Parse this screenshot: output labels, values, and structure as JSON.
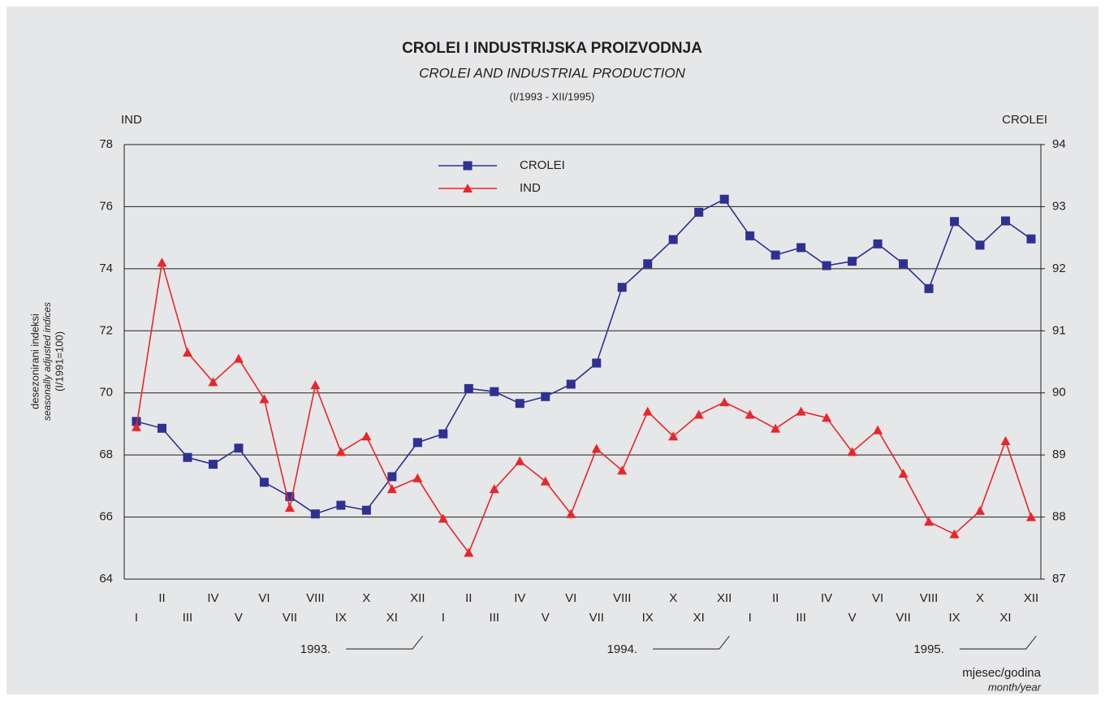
{
  "chart_data": {
    "type": "line",
    "title": "CROLEI I INDUSTRIJSKA PROIZVODNJA",
    "subtitle": "CROLEI AND INDUSTRIAL PRODUCTION",
    "period": "(I/1993 - XII/1995)",
    "ylabel": [
      "desezonirani indeksi",
      "seasonally adjusted indices",
      "(I/1991=100)"
    ],
    "y_axis_title": "IND",
    "y2_axis_title": "CROLEI",
    "xlabel": "mjesec/godina",
    "xlabel_en": "month/year",
    "categories": [
      "I",
      "II",
      "III",
      "IV",
      "V",
      "VI",
      "VII",
      "VIII",
      "IX",
      "X",
      "XI",
      "XII",
      "I",
      "II",
      "III",
      "IV",
      "V",
      "VI",
      "VII",
      "VIII",
      "IX",
      "X",
      "XI",
      "XII",
      "I",
      "II",
      "III",
      "IV",
      "V",
      "VI",
      "VII",
      "VIII",
      "IX",
      "X",
      "XI",
      "XII"
    ],
    "years": [
      "1993.",
      "1994.",
      "1995."
    ],
    "series": [
      {
        "name": "CROLEI",
        "color": "#2e3192",
        "marker": "square",
        "axis": "y2",
        "values": [
          89.54,
          89.43,
          88.96,
          88.85,
          89.11,
          88.56,
          88.33,
          88.05,
          88.19,
          88.11,
          88.65,
          89.2,
          89.34,
          90.07,
          90.02,
          89.83,
          89.94,
          90.14,
          90.48,
          91.7,
          92.08,
          92.47,
          92.91,
          93.12,
          92.53,
          92.22,
          92.34,
          92.05,
          92.12,
          92.4,
          92.08,
          91.68,
          92.76,
          92.38,
          92.77,
          92.48
        ]
      },
      {
        "name": "IND",
        "color": "#e8262b",
        "marker": "triangle",
        "axis": "y",
        "values": [
          68.9,
          74.2,
          71.3,
          70.35,
          71.1,
          69.8,
          66.3,
          70.25,
          68.1,
          68.6,
          66.9,
          67.25,
          65.95,
          64.85,
          66.9,
          67.8,
          67.15,
          66.1,
          68.2,
          67.5,
          69.4,
          68.6,
          69.3,
          69.7,
          69.3,
          68.85,
          69.4,
          69.2,
          68.1,
          68.8,
          67.4,
          65.85,
          65.45,
          66.2,
          68.45,
          66.0
        ]
      }
    ],
    "ylim": [
      64,
      78
    ],
    "yticks": [
      64,
      66,
      68,
      70,
      72,
      74,
      76,
      78
    ],
    "y2lim": [
      87,
      94
    ],
    "y2ticks": [
      87,
      88,
      89,
      90,
      91,
      92,
      93,
      94
    ],
    "grid": true,
    "legend": "upper center"
  }
}
